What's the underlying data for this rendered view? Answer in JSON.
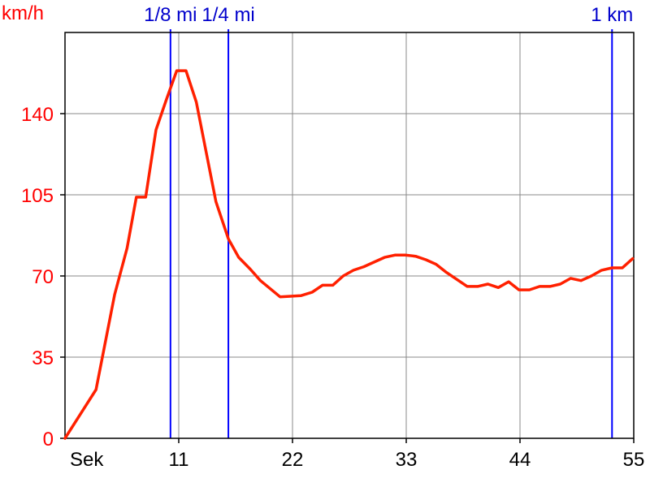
{
  "chart_data": {
    "type": "line",
    "ylabel": "km/h",
    "xlabel": "Sek",
    "xlim": [
      0,
      55
    ],
    "ylim": [
      0,
      175
    ],
    "x_ticks": [
      11,
      22,
      33,
      44,
      55
    ],
    "x_tick_labels": [
      "11",
      "22",
      "33",
      "44",
      "55"
    ],
    "y_ticks": [
      0,
      35,
      70,
      105,
      140
    ],
    "y_tick_labels": [
      "0",
      "35",
      "70",
      "105",
      "140"
    ],
    "grid": true,
    "markers": [
      {
        "label": "1/8 mi",
        "x": 10.2
      },
      {
        "label": "1/4 mi",
        "x": 15.8
      },
      {
        "label": "1 km",
        "x": 52.9
      }
    ],
    "series": [
      {
        "color": "#ff2000",
        "points": [
          [
            0,
            0
          ],
          [
            3,
            21
          ],
          [
            4.8,
            62
          ],
          [
            6,
            82
          ],
          [
            6.9,
            104
          ],
          [
            7.8,
            104
          ],
          [
            8.8,
            133
          ],
          [
            9.8,
            146
          ],
          [
            10.8,
            158.5
          ],
          [
            11.7,
            158.5
          ],
          [
            12.7,
            145
          ],
          [
            14.6,
            102
          ],
          [
            15.8,
            86
          ],
          [
            16.8,
            78
          ],
          [
            17.9,
            73
          ],
          [
            18.9,
            68
          ],
          [
            20.8,
            61
          ],
          [
            22.8,
            61.5
          ],
          [
            23.9,
            63
          ],
          [
            24.9,
            66
          ],
          [
            25.9,
            66
          ],
          [
            26.9,
            70
          ],
          [
            27.9,
            72.5
          ],
          [
            28.9,
            74
          ],
          [
            29.9,
            76
          ],
          [
            30.9,
            78
          ],
          [
            31.9,
            79
          ],
          [
            32.9,
            79
          ],
          [
            33.9,
            78.5
          ],
          [
            34.9,
            77
          ],
          [
            35.9,
            75
          ],
          [
            36.9,
            71.5
          ],
          [
            38.9,
            65.5
          ],
          [
            39.9,
            65.5
          ],
          [
            40.9,
            66.5
          ],
          [
            41.9,
            65
          ],
          [
            42.9,
            67.5
          ],
          [
            43.9,
            64
          ],
          [
            44.9,
            64
          ],
          [
            45.9,
            65.5
          ],
          [
            46.9,
            65.5
          ],
          [
            47.9,
            66.5
          ],
          [
            48.9,
            69
          ],
          [
            49.9,
            68
          ],
          [
            50.9,
            70
          ],
          [
            51.9,
            72.5
          ],
          [
            52.9,
            73.5
          ],
          [
            53.9,
            73.5
          ],
          [
            54.9,
            77.5
          ]
        ]
      }
    ],
    "colors": {
      "axis_text": "#ff0000",
      "x_tick_text": "#000000",
      "marker_line": "#0000ff",
      "marker_text": "#0000cc",
      "grid": "#888888",
      "frame": "#000000",
      "series": "#ff2000"
    }
  }
}
